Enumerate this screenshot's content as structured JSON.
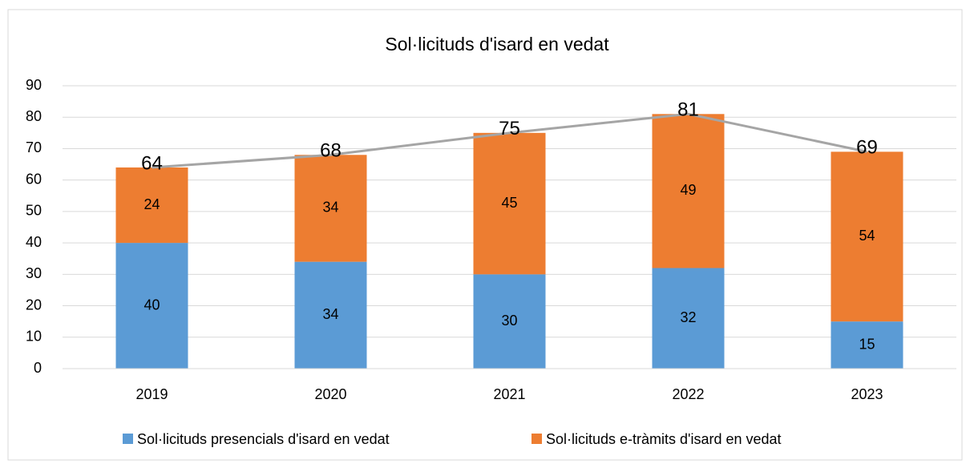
{
  "chart_data": {
    "type": "bar",
    "stacked": true,
    "title": "Sol·licituds d'isard en vedat",
    "categories": [
      "2019",
      "2020",
      "2021",
      "2022",
      "2023"
    ],
    "series": [
      {
        "name": "Sol·licituds presencials d'isard en vedat",
        "color": "#5b9bd5",
        "values": [
          40,
          34,
          30,
          32,
          15
        ]
      },
      {
        "name": "Sol·licituds e-tràmits d'isard en vedat",
        "color": "#ed7d31",
        "values": [
          24,
          34,
          45,
          49,
          54
        ]
      }
    ],
    "line": {
      "color": "#a5a5a5",
      "values": [
        64,
        68,
        75,
        81,
        69
      ]
    },
    "ylim": [
      0,
      90
    ],
    "yticks": [
      0,
      10,
      20,
      30,
      40,
      50,
      60,
      70,
      80,
      90
    ],
    "grid": true,
    "legend": "bottom"
  }
}
